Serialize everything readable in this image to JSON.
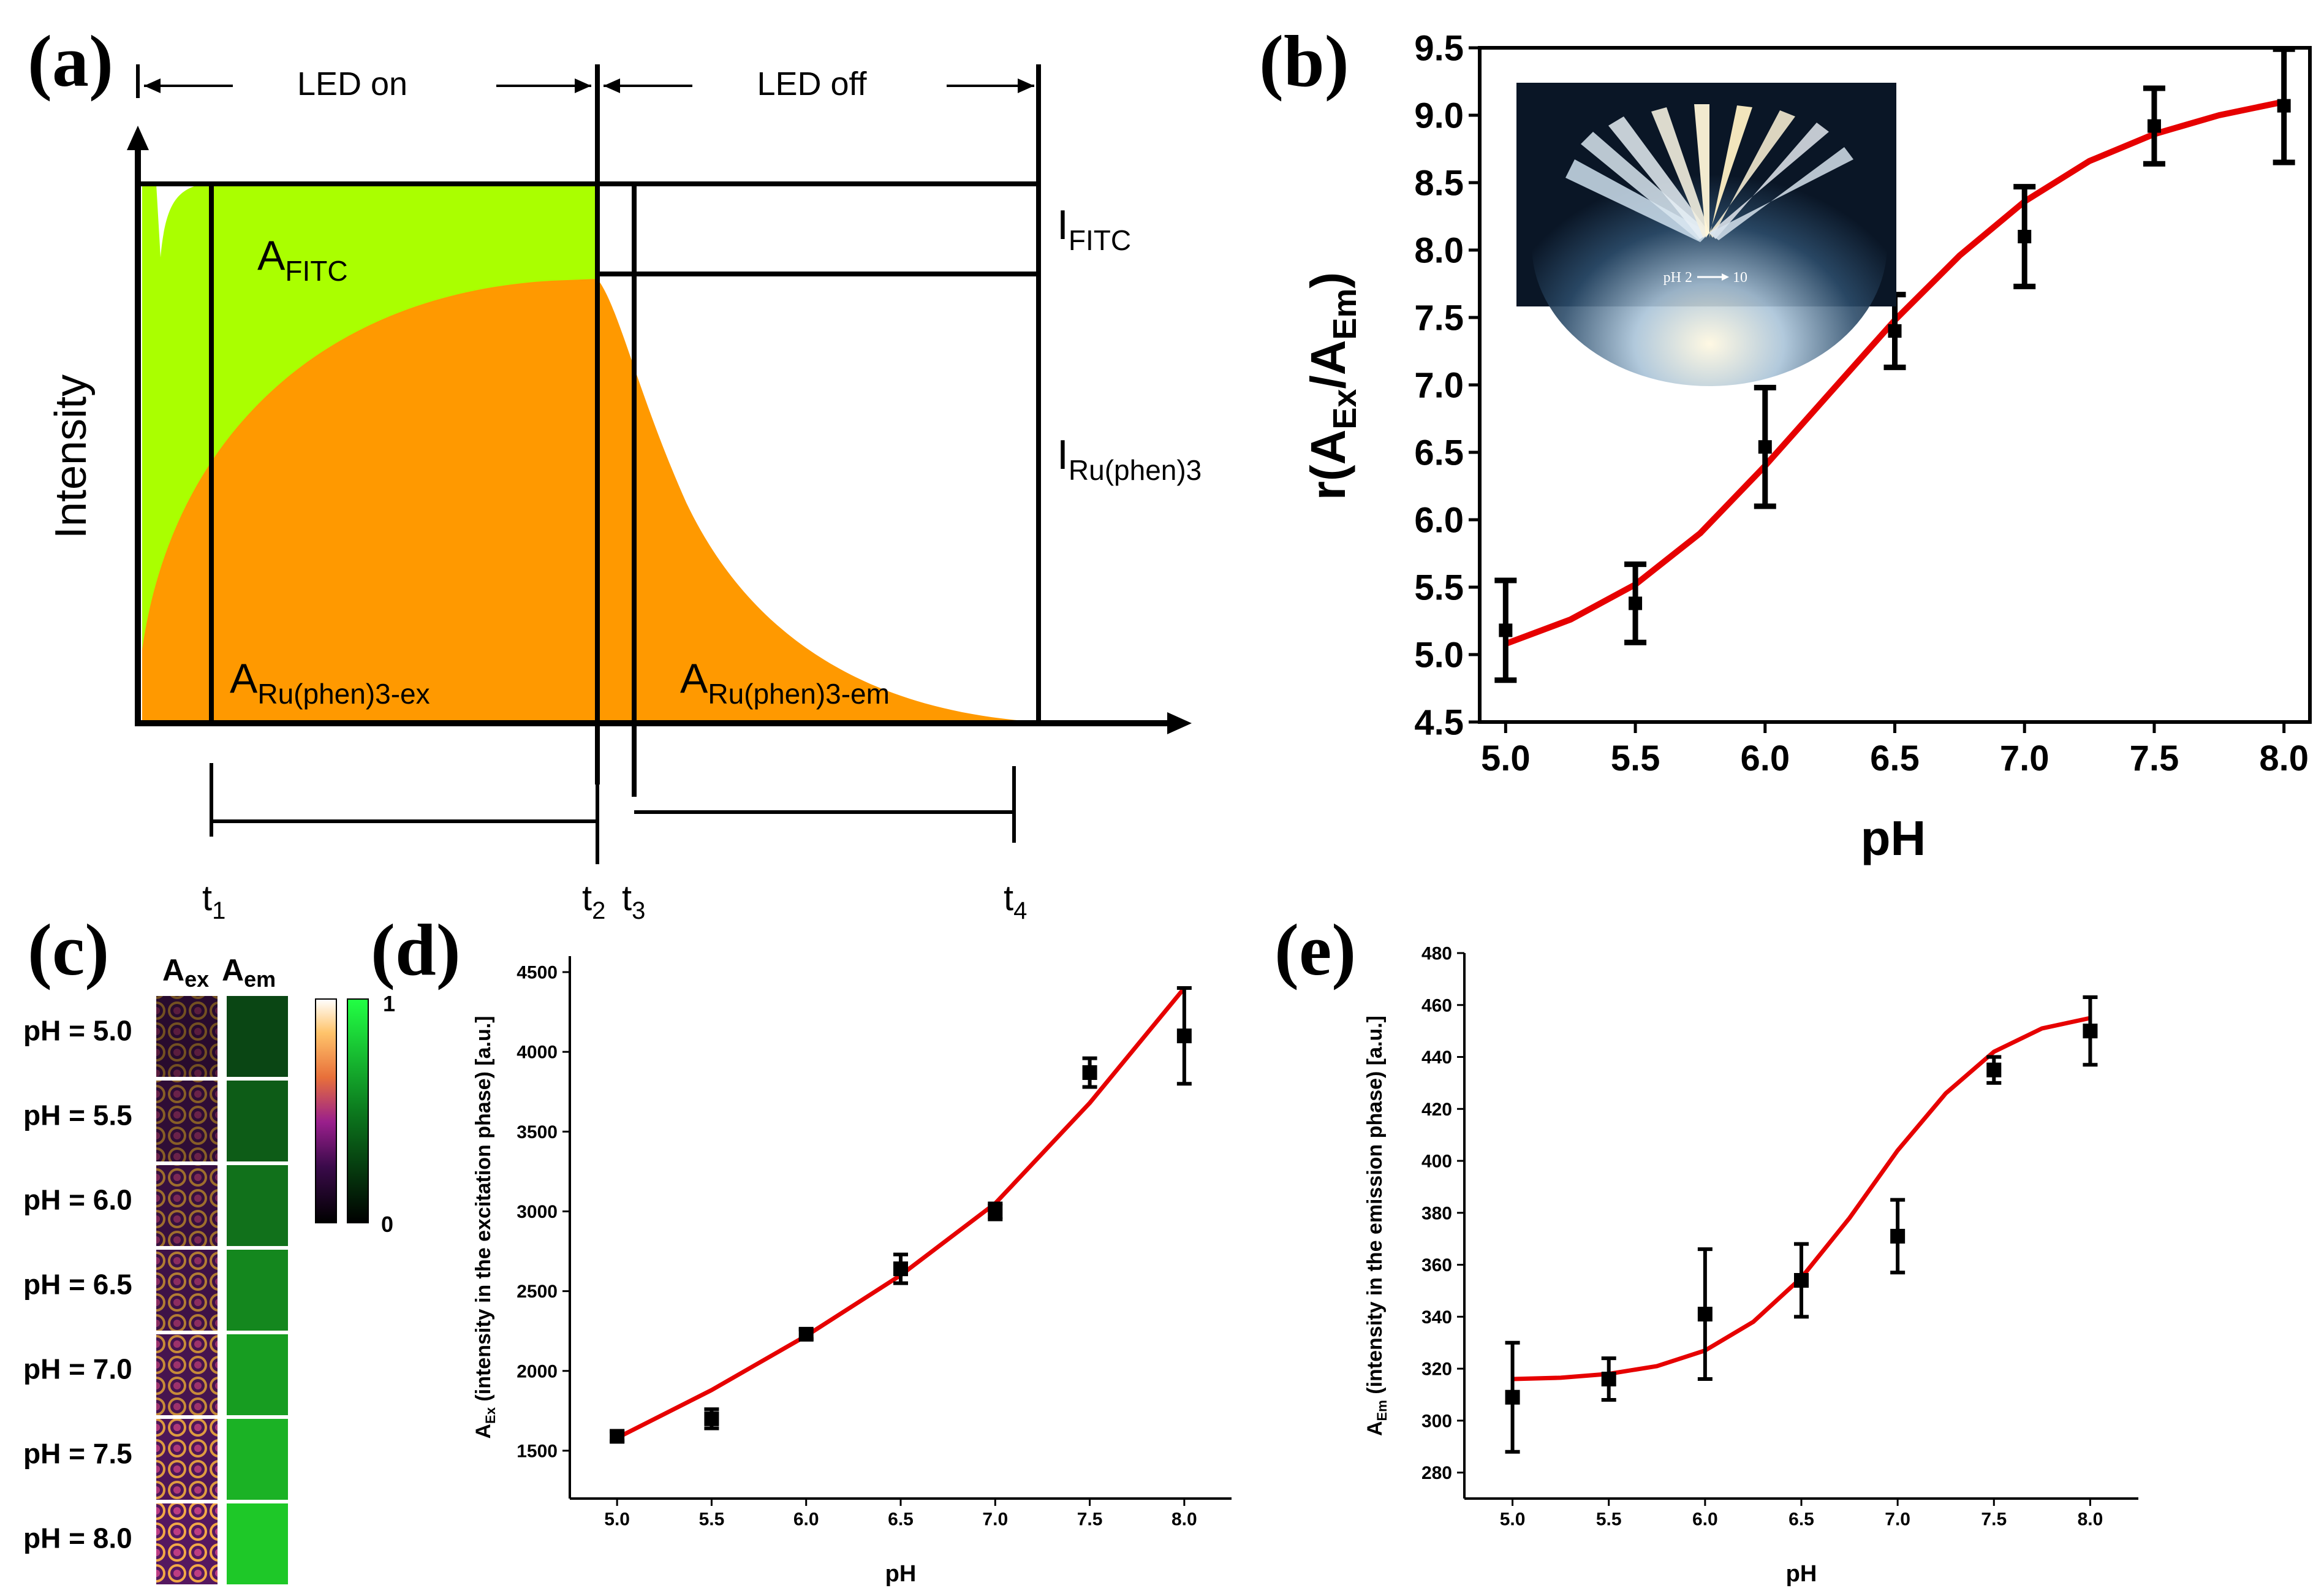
{
  "panel_labels": {
    "a": "(a)",
    "b": "(b)",
    "c": "(c)",
    "d": "(d)",
    "e": "(e)"
  },
  "panel_a": {
    "led_on": "LED on",
    "led_off": "LED off",
    "ylabel": "Intensity",
    "a_fitc": "A",
    "a_fitc_sub": "FITC",
    "i_fitc": "I",
    "i_fitc_sub": "FITC",
    "i_ru": "I",
    "i_ru_sub": "Ru(phen)3",
    "a_ru_ex": "A",
    "a_ru_ex_sub": "Ru(phen)3-ex",
    "a_ru_em": "A",
    "a_ru_em_sub": "Ru(phen)3-em",
    "t1": "t",
    "t1_sub": "1",
    "t2": "t",
    "t2_sub": "2",
    "t3": "t",
    "t3_sub": "3",
    "t4": "t",
    "t4_sub": "4",
    "colors": {
      "fitc": "#aaff00",
      "ru": "#ff9900"
    }
  },
  "panel_b": {
    "inset_caption": "pH 2",
    "inset_caption_end": "10"
  },
  "panel_c": {
    "col_ex": "A",
    "col_ex_sub": "ex",
    "col_em": "A",
    "col_em_sub": "em",
    "rows": [
      "pH = 5.0",
      "pH = 5.5",
      "pH = 6.0",
      "pH = 6.5",
      "pH = 7.0",
      "pH = 7.5",
      "pH = 8.0"
    ],
    "colorbar_max": "1",
    "colorbar_min": "0"
  },
  "chart_data": [
    {
      "id": "b",
      "type": "scatter",
      "title": "",
      "xlabel": "pH",
      "ylabel_main": "r(A",
      "ylabel_sub1": "Ex",
      "ylabel_mid": "/A",
      "ylabel_sub2": "Em",
      "ylabel_end": ")",
      "xlim": [
        4.9,
        8.1
      ],
      "ylim": [
        4.5,
        9.5
      ],
      "xticks": [
        "5.0",
        "5.5",
        "6.0",
        "6.5",
        "7.0",
        "7.5",
        "8.0"
      ],
      "yticks": [
        "4.5",
        "5.0",
        "5.5",
        "6.0",
        "6.5",
        "7.0",
        "7.5",
        "8.0",
        "8.5",
        "9.0",
        "9.5"
      ],
      "x": [
        5.0,
        5.5,
        6.0,
        6.5,
        7.0,
        7.5,
        8.0
      ],
      "y": [
        5.18,
        5.38,
        6.54,
        7.4,
        8.1,
        8.92,
        9.07
      ],
      "err": [
        0.37,
        0.29,
        0.44,
        0.27,
        0.37,
        0.28,
        0.42
      ],
      "fit": {
        "type": "sigmoid",
        "color": "#e60000",
        "x": [
          5.0,
          5.25,
          5.5,
          5.75,
          6.0,
          6.25,
          6.5,
          6.75,
          7.0,
          7.25,
          7.5,
          7.75,
          8.0
        ],
        "y": [
          5.08,
          5.26,
          5.52,
          5.9,
          6.4,
          6.94,
          7.48,
          7.96,
          8.36,
          8.66,
          8.86,
          9.0,
          9.1
        ]
      }
    },
    {
      "id": "d",
      "type": "scatter",
      "xlabel": "pH",
      "ylabel_main": "A",
      "ylabel_sub": "Ex",
      "ylabel_rest": " (intensity in the excitation phase) [a.u.]",
      "xlim": [
        4.75,
        8.25
      ],
      "ylim": [
        1200,
        4600
      ],
      "xticks": [
        "5.0",
        "5.5",
        "6.0",
        "6.5",
        "7.0",
        "7.5",
        "8.0"
      ],
      "yticks": [
        "1500",
        "2000",
        "2500",
        "3000",
        "3500",
        "4000",
        "4500"
      ],
      "x": [
        5.0,
        5.5,
        6.0,
        6.5,
        7.0,
        7.5,
        8.0
      ],
      "y": [
        1590,
        1700,
        2230,
        2640,
        3000,
        3870,
        4100
      ],
      "err": [
        30,
        60,
        30,
        90,
        50,
        90,
        300
      ],
      "fit": {
        "type": "power",
        "color": "#e60000",
        "x": [
          5.0,
          5.5,
          6.0,
          6.5,
          7.0,
          7.5,
          8.0
        ],
        "y": [
          1580,
          1880,
          2220,
          2600,
          3050,
          3680,
          4400
        ]
      }
    },
    {
      "id": "e",
      "type": "scatter",
      "xlabel": "pH",
      "ylabel_main": "A",
      "ylabel_sub": "Em",
      "ylabel_rest": " (intensity in the emission phase) [a.u.]",
      "xlim": [
        4.75,
        8.25
      ],
      "ylim": [
        270,
        480
      ],
      "xticks": [
        "5.0",
        "5.5",
        "6.0",
        "6.5",
        "7.0",
        "7.5",
        "8.0"
      ],
      "yticks": [
        "280",
        "300",
        "320",
        "340",
        "360",
        "380",
        "400",
        "420",
        "440",
        "460",
        "480"
      ],
      "x": [
        5.0,
        5.5,
        6.0,
        6.5,
        7.0,
        7.5,
        8.0
      ],
      "y": [
        309,
        316,
        341,
        354,
        371,
        435,
        450
      ],
      "err": [
        21,
        8,
        25,
        14,
        14,
        5,
        13
      ],
      "fit": {
        "type": "sigmoid",
        "color": "#e60000",
        "x": [
          5.0,
          5.25,
          5.5,
          5.75,
          6.0,
          6.25,
          6.5,
          6.75,
          7.0,
          7.25,
          7.5,
          7.75,
          8.0
        ],
        "y": [
          316,
          316.5,
          318,
          321,
          327,
          338,
          355,
          378,
          404,
          426,
          442,
          451,
          455
        ]
      }
    }
  ]
}
